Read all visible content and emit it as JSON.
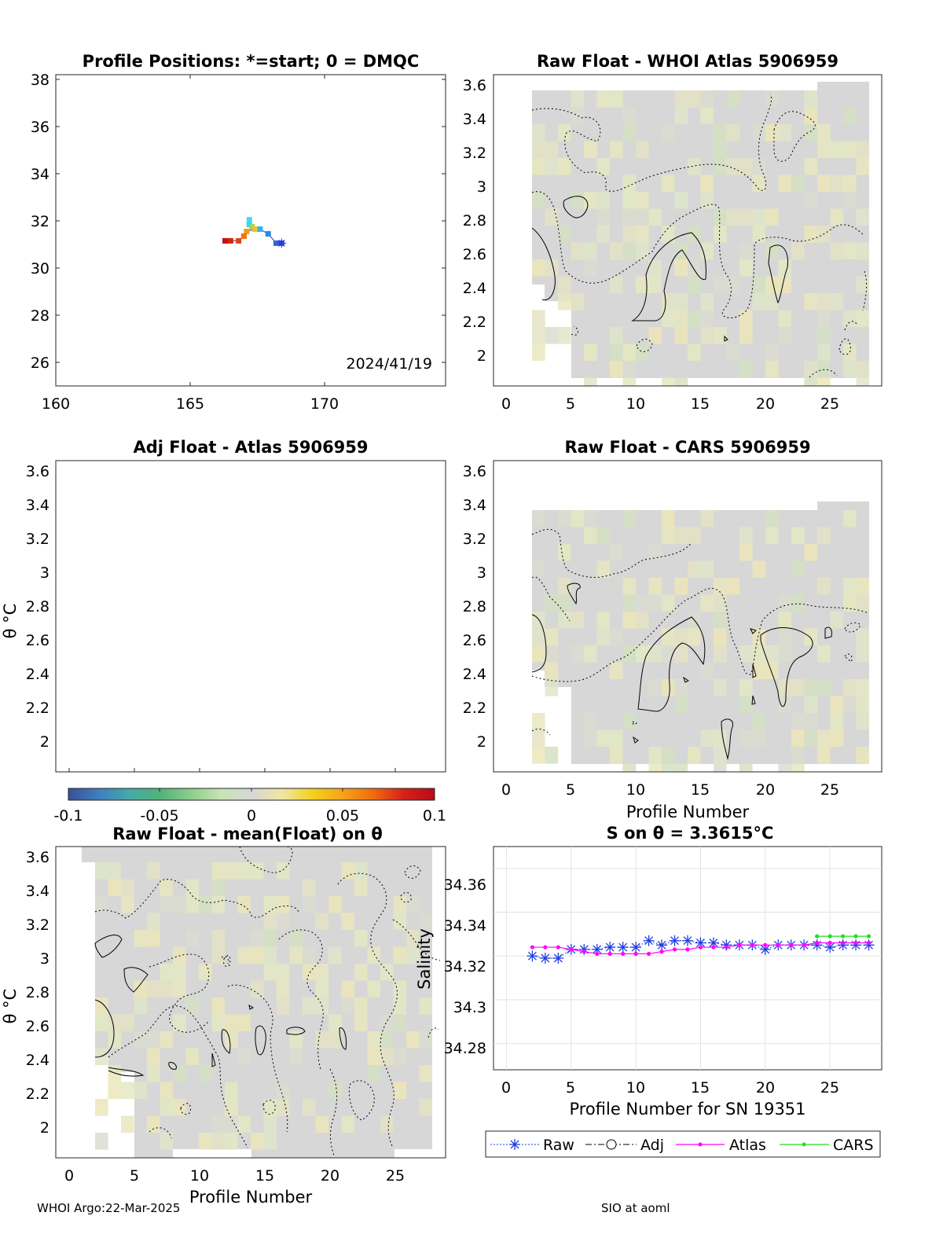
{
  "footer": {
    "left": "WHOI Argo:22-Mar-2025",
    "right": "SIO at aoml"
  },
  "colorbar": {
    "ticks": [
      "-0.1",
      "-0.05",
      "0",
      "0.05",
      "0.1"
    ],
    "colors": [
      "#3b4f9a",
      "#3f7fbf",
      "#44a9a7",
      "#52b27a",
      "#8ccd8c",
      "#c8e4b5",
      "#d7d7d7",
      "#efe6a3",
      "#f3d11d",
      "#f7a21a",
      "#ef6a10",
      "#d6201a",
      "#b80c16"
    ]
  },
  "panels": {
    "positions": {
      "title": "Profile Positions: *=start; 0 = DMQC",
      "date": "2024/41/19",
      "xticks": [
        "160",
        "165",
        "170"
      ],
      "yticks": [
        "26",
        "28",
        "30",
        "32",
        "34",
        "36",
        "38"
      ]
    },
    "whoi": {
      "title": "Raw Float - WHOI Atlas  5906959",
      "xticks": [
        "0",
        "5",
        "10",
        "15",
        "20",
        "25"
      ],
      "yticks": [
        "2",
        "2.2",
        "2.4",
        "2.6",
        "2.8",
        "3",
        "3.2",
        "3.4",
        "3.6"
      ]
    },
    "adj": {
      "title": "Adj Float - Atlas  5906959",
      "ylabel": "θ °C",
      "yticks": [
        "2",
        "2.2",
        "2.4",
        "2.6",
        "2.8",
        "3",
        "3.2",
        "3.4",
        "3.6"
      ]
    },
    "cars": {
      "title": "Raw Float - CARS  5906959",
      "xlabel": "Profile Number",
      "xticks": [
        "0",
        "5",
        "10",
        "15",
        "20",
        "25"
      ],
      "yticks": [
        "2",
        "2.2",
        "2.4",
        "2.6",
        "2.8",
        "3",
        "3.2",
        "3.4",
        "3.6"
      ]
    },
    "mean": {
      "title": "Raw Float - mean(Float) on θ",
      "xlabel": "Profile Number",
      "ylabel": "θ °C",
      "xticks": [
        "0",
        "5",
        "10",
        "15",
        "20",
        "25"
      ],
      "yticks": [
        "2",
        "2.2",
        "2.4",
        "2.6",
        "2.8",
        "3",
        "3.2",
        "3.4",
        "3.6"
      ]
    },
    "salinity": {
      "title": "S on θ = 3.3615°C",
      "xlabel": "Profile Number for SN 19351",
      "ylabel": "Salinity",
      "xticks": [
        "0",
        "5",
        "10",
        "15",
        "20",
        "25"
      ],
      "yticks": [
        "34.28",
        "34.3",
        "34.32",
        "34.34",
        "34.36"
      ]
    }
  },
  "chart_data": [
    {
      "type": "scatter",
      "title": "Profile Positions: *=start; 0 = DMQC",
      "xlim": [
        160,
        174.5
      ],
      "ylim": [
        25,
        38.3
      ],
      "annotation": "2024/41/19",
      "track": [
        {
          "x": 168.4,
          "y": 31.1,
          "color": "#2b3fd6"
        },
        {
          "x": 168.2,
          "y": 31.1,
          "color": "#2f66e0"
        },
        {
          "x": 167.9,
          "y": 31.5,
          "color": "#2f86e6"
        },
        {
          "x": 167.6,
          "y": 31.7,
          "color": "#33b4ee"
        },
        {
          "x": 167.2,
          "y": 31.9,
          "color": "#37d2f0"
        },
        {
          "x": 167.2,
          "y": 32.1,
          "color": "#3fe0e8"
        },
        {
          "x": 167.3,
          "y": 31.8,
          "color": "#9ad36a"
        },
        {
          "x": 167.4,
          "y": 31.7,
          "color": "#f3c41f"
        },
        {
          "x": 167.1,
          "y": 31.6,
          "color": "#f39a19"
        },
        {
          "x": 167.0,
          "y": 31.4,
          "color": "#ef7414"
        },
        {
          "x": 166.8,
          "y": 31.2,
          "color": "#e04412"
        },
        {
          "x": 166.5,
          "y": 31.2,
          "color": "#d32612"
        },
        {
          "x": 166.3,
          "y": 31.2,
          "color": "#c0141a"
        }
      ]
    },
    {
      "type": "heatmap",
      "title": "Raw Float - WHOI Atlas  5906959",
      "xlim": [
        -1,
        29
      ],
      "ylim": [
        1.82,
        3.66
      ],
      "data_range": {
        "x": [
          2,
          28
        ],
        "y": [
          1.87,
          3.61
        ]
      },
      "values_range": [
        -0.1,
        0.1
      ],
      "note": "near-zero differences over most of the field with light yellow/green patches"
    },
    {
      "type": "heatmap",
      "title": "Adj Float - Atlas  5906959",
      "ylim": [
        1.82,
        3.66
      ],
      "series": []
    },
    {
      "type": "heatmap",
      "title": "Raw Float - CARS  5906959",
      "xlabel": "Profile Number",
      "xlim": [
        -1,
        29
      ],
      "ylim": [
        1.82,
        3.66
      ],
      "data_range": {
        "x": [
          2,
          28
        ],
        "y": [
          1.87,
          3.61
        ]
      },
      "values_range": [
        -0.1,
        0.1
      ]
    },
    {
      "type": "heatmap",
      "title": "Raw Float - mean(Float) on θ",
      "xlabel": "Profile Number",
      "ylabel": "θ °C",
      "xlim": [
        -1,
        29
      ],
      "ylim": [
        1.82,
        3.66
      ],
      "data_range": {
        "x": [
          2,
          28
        ],
        "y": [
          1.82,
          3.66
        ]
      },
      "values_range": [
        -0.1,
        0.1
      ]
    },
    {
      "type": "line",
      "title": "S on θ = 3.3615°C",
      "xlabel": "Profile Number for SN 19351",
      "ylabel": "Salinity",
      "xlim": [
        -1,
        29
      ],
      "ylim": [
        34.268,
        34.37
      ],
      "grid": true,
      "legend_position": "bottom",
      "series": [
        {
          "name": "Raw",
          "color": "#1f3fe0",
          "marker": "asterisk",
          "line": "dotted",
          "x": [
            2,
            3,
            4,
            5,
            6,
            7,
            8,
            9,
            10,
            11,
            12,
            13,
            14,
            15,
            16,
            17,
            18,
            19,
            20,
            21,
            22,
            23,
            24,
            25,
            26,
            27,
            28
          ],
          "y": [
            34.32,
            34.319,
            34.319,
            34.323,
            34.323,
            34.323,
            34.324,
            34.324,
            34.324,
            34.327,
            34.325,
            34.327,
            34.327,
            34.326,
            34.326,
            34.325,
            34.325,
            34.325,
            34.323,
            34.325,
            34.325,
            34.325,
            34.325,
            34.324,
            34.325,
            34.325,
            34.325
          ]
        },
        {
          "name": "Adj",
          "color": "#000000",
          "marker": "circle",
          "line": "dashdot",
          "x": [],
          "y": []
        },
        {
          "name": "Atlas",
          "color": "#ff00ff",
          "marker": "dot",
          "line": "solid",
          "x": [
            2,
            3,
            4,
            5,
            6,
            7,
            8,
            9,
            10,
            11,
            12,
            13,
            14,
            15,
            16,
            17,
            18,
            19,
            20,
            21,
            22,
            23,
            24,
            25,
            26,
            27,
            28
          ],
          "y": [
            34.324,
            34.324,
            34.324,
            34.323,
            34.322,
            34.321,
            34.321,
            34.321,
            34.321,
            34.321,
            34.322,
            34.323,
            34.323,
            34.324,
            34.324,
            34.324,
            34.325,
            34.325,
            34.325,
            34.325,
            34.325,
            34.325,
            34.326,
            34.326,
            34.326,
            34.326,
            34.326
          ]
        },
        {
          "name": "CARS",
          "color": "#22dd22",
          "marker": "dot",
          "line": "solid",
          "x": [
            24,
            25,
            26,
            27,
            28
          ],
          "y": [
            34.329,
            34.329,
            34.329,
            34.329,
            34.329
          ]
        }
      ]
    }
  ]
}
